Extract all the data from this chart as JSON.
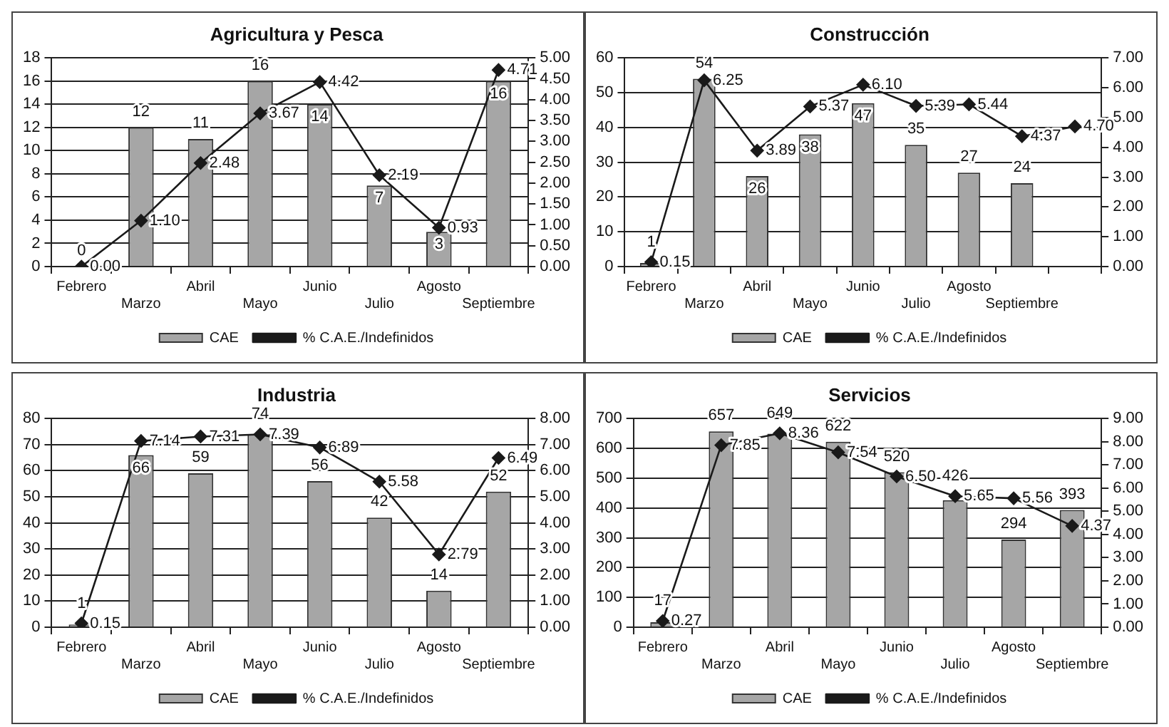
{
  "chart_data": [
    {
      "type": "bar",
      "title": "Agricultura y Pesca",
      "categories": [
        "Febrero",
        "Marzo",
        "Abril",
        "Mayo",
        "Junio",
        "Julio",
        "Agosto",
        "Septiembre"
      ],
      "series": [
        {
          "name": "CAE",
          "color": "#a6a6a6",
          "values": [
            0,
            12,
            11,
            16,
            14,
            7,
            3,
            16
          ],
          "value_labels": [
            "0",
            "12",
            "11",
            "16",
            "14",
            "7",
            "3",
            "16"
          ]
        },
        {
          "name": "% C.A.E./Indefinidos",
          "type": "line",
          "axis": "y2",
          "color": "#1a1a1a",
          "marker": "diamond",
          "values": [
            0,
            1.1,
            2.48,
            3.67,
            4.42,
            2.19,
            0.93,
            4.71
          ],
          "value_labels": [
            "0.00",
            "1.10",
            "2.48",
            "3.67",
            "4.42",
            "2.19",
            "0.93",
            "4.71"
          ]
        }
      ],
      "ylim": [
        0,
        18
      ],
      "yticks": [
        0,
        2,
        4,
        6,
        8,
        10,
        12,
        14,
        16,
        18
      ],
      "y2lim": [
        0,
        5
      ],
      "y2ticks": [
        {
          "value": 0,
          "label": "0.00"
        },
        {
          "value": 0.5,
          "label": "0.50"
        },
        {
          "value": 1,
          "label": "1.00"
        },
        {
          "value": 1.5,
          "label": "1.50"
        },
        {
          "value": 2,
          "label": "2.00"
        },
        {
          "value": 2.5,
          "label": "2.50"
        },
        {
          "value": 3,
          "label": "3.00"
        },
        {
          "value": 3.5,
          "label": "3.50"
        },
        {
          "value": 4,
          "label": "4.00"
        },
        {
          "value": 4.5,
          "label": "4.50"
        },
        {
          "value": 5,
          "label": "5.00"
        }
      ],
      "grid": "y",
      "legend": "bottom"
    },
    {
      "type": "bar",
      "title": "Construcción",
      "categories": [
        "Febrero",
        "Marzo",
        "Abril",
        "Mayo",
        "Junio",
        "Julio",
        "Agosto",
        "Septiembre",
        null
      ],
      "series": [
        {
          "name": "CAE",
          "color": "#a6a6a6",
          "values": [
            1,
            54,
            26,
            38,
            47,
            35,
            27,
            24,
            null
          ],
          "value_labels": [
            "1",
            "54",
            "26",
            "38",
            "47",
            "35",
            "27",
            "24",
            null
          ]
        },
        {
          "name": "% C.A.E./Indefinidos",
          "type": "line",
          "axis": "y2",
          "color": "#1a1a1a",
          "marker": "diamond",
          "values": [
            0.15,
            6.25,
            3.89,
            5.37,
            6.1,
            5.39,
            5.44,
            4.37,
            4.7
          ],
          "value_labels": [
            "0.15",
            "6.25",
            "3.89",
            "5.37",
            "6.10",
            "5.39",
            "5.44",
            "4.37",
            "4.70"
          ]
        }
      ],
      "ylim": [
        0,
        60
      ],
      "yticks": [
        0,
        10,
        20,
        30,
        40,
        50,
        60
      ],
      "y2lim": [
        0,
        7
      ],
      "y2ticks": [
        {
          "value": 0,
          "label": "0.00"
        },
        {
          "value": 1,
          "label": "1.00"
        },
        {
          "value": 2,
          "label": "2.00"
        },
        {
          "value": 3,
          "label": "3.00"
        },
        {
          "value": 4,
          "label": "4.00"
        },
        {
          "value": 5,
          "label": "5.00"
        },
        {
          "value": 6,
          "label": "6.00"
        },
        {
          "value": 7,
          "label": "7.00"
        }
      ],
      "grid": "y",
      "legend": "bottom"
    },
    {
      "type": "bar",
      "title": "Industria",
      "categories": [
        "Febrero",
        "Marzo",
        "Abril",
        "Mayo",
        "Junio",
        "Julio",
        "Agosto",
        "Septiembre"
      ],
      "series": [
        {
          "name": "CAE",
          "color": "#a6a6a6",
          "values": [
            1,
            66,
            59,
            74,
            56,
            42,
            14,
            52
          ],
          "value_labels": [
            "1",
            "66",
            "59",
            "74",
            "56",
            "42",
            "14",
            "52"
          ]
        },
        {
          "name": "% C.A.E./Indefinidos",
          "type": "line",
          "axis": "y2",
          "color": "#1a1a1a",
          "marker": "diamond",
          "values": [
            0.15,
            7.14,
            7.31,
            7.39,
            6.89,
            5.58,
            2.79,
            6.49
          ],
          "value_labels": [
            "0.15",
            "7.14",
            "7.31",
            "7.39",
            "6.89",
            "5.58",
            "2.79",
            "6.49"
          ]
        }
      ],
      "ylim": [
        0,
        80
      ],
      "yticks": [
        0,
        10,
        20,
        30,
        40,
        50,
        60,
        70,
        80
      ],
      "y2lim": [
        0,
        8
      ],
      "y2ticks": [
        {
          "value": 0,
          "label": "0.00"
        },
        {
          "value": 1,
          "label": "1.00"
        },
        {
          "value": 2,
          "label": "2.00"
        },
        {
          "value": 3,
          "label": "3.00"
        },
        {
          "value": 4,
          "label": "4.00"
        },
        {
          "value": 5,
          "label": "5.00"
        },
        {
          "value": 6,
          "label": "6.00"
        },
        {
          "value": 7,
          "label": "7.00"
        },
        {
          "value": 8,
          "label": "8.00"
        }
      ],
      "grid": "y",
      "legend": "bottom"
    },
    {
      "type": "bar",
      "title": "Servicios",
      "categories": [
        "Febrero",
        "Marzo",
        "Abril",
        "Mayo",
        "Junio",
        "Julio",
        "Agosto",
        "Septiembre"
      ],
      "series": [
        {
          "name": "CAE",
          "color": "#a6a6a6",
          "values": [
            17,
            657,
            649,
            622,
            520,
            426,
            294,
            393
          ],
          "value_labels": [
            "17",
            "657",
            "649",
            "622",
            "520",
            "426",
            "294",
            "393"
          ]
        },
        {
          "name": "% C.A.E./Indefinidos",
          "type": "line",
          "axis": "y2",
          "color": "#1a1a1a",
          "marker": "diamond",
          "values": [
            0.27,
            7.85,
            8.36,
            7.54,
            6.5,
            5.65,
            5.56,
            4.37
          ],
          "value_labels": [
            "0.27",
            "7.85",
            "8.36",
            "7.54",
            "6.50",
            "5.65",
            "5.56",
            "4.37"
          ]
        }
      ],
      "ylim": [
        0,
        700
      ],
      "yticks": [
        0,
        100,
        200,
        300,
        400,
        500,
        600,
        700
      ],
      "y2lim": [
        0,
        9
      ],
      "y2ticks": [
        {
          "value": 0,
          "label": "0.00"
        },
        {
          "value": 1,
          "label": "1.00"
        },
        {
          "value": 2,
          "label": "2.00"
        },
        {
          "value": 3,
          "label": "3.00"
        },
        {
          "value": 4,
          "label": "4.00"
        },
        {
          "value": 5,
          "label": "5.00"
        },
        {
          "value": 6,
          "label": "6.00"
        },
        {
          "value": 7,
          "label": "7.00"
        },
        {
          "value": 8,
          "label": "8.00"
        },
        {
          "value": 9,
          "label": "9.00"
        }
      ],
      "grid": "y",
      "legend": "bottom"
    }
  ]
}
